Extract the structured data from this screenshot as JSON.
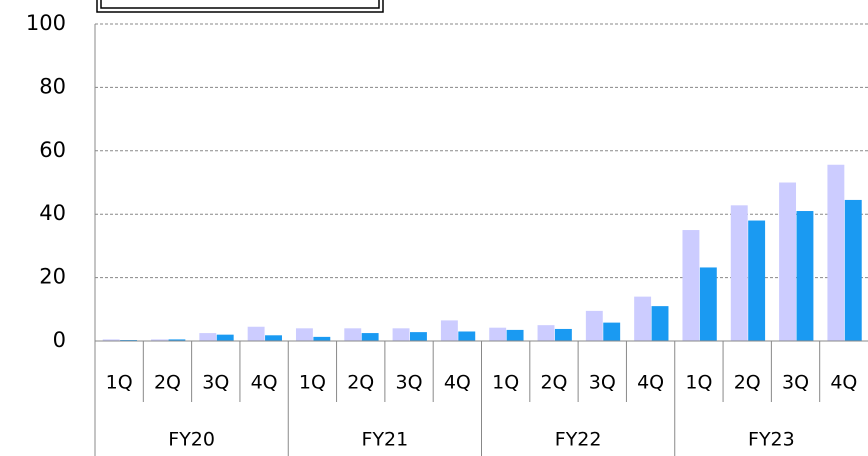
{
  "chart_data": {
    "type": "bar",
    "categories": [
      "1Q",
      "2Q",
      "3Q",
      "4Q",
      "1Q",
      "2Q",
      "3Q",
      "4Q",
      "1Q",
      "2Q",
      "3Q",
      "4Q",
      "1Q",
      "2Q",
      "3Q",
      "4Q"
    ],
    "category_groups": [
      "FY20",
      "FY21",
      "FY22",
      "FY23"
    ],
    "series": [
      {
        "color": "#ccccff",
        "values": [
          0.5,
          0.5,
          2.5,
          4.5,
          4,
          4,
          4,
          6.5,
          4.2,
          5,
          9.5,
          14,
          35,
          42.8,
          50,
          55.6
        ]
      },
      {
        "color": "#1a9af2",
        "values": [
          0.3,
          0.5,
          2,
          1.8,
          1.3,
          2.5,
          2.8,
          3,
          3.5,
          3.8,
          5.8,
          11,
          23.2,
          38,
          41,
          44.5
        ]
      }
    ],
    "ylim": [
      0,
      100
    ],
    "yticks": [
      0,
      20,
      40,
      60,
      80,
      100
    ],
    "grid": true
  }
}
